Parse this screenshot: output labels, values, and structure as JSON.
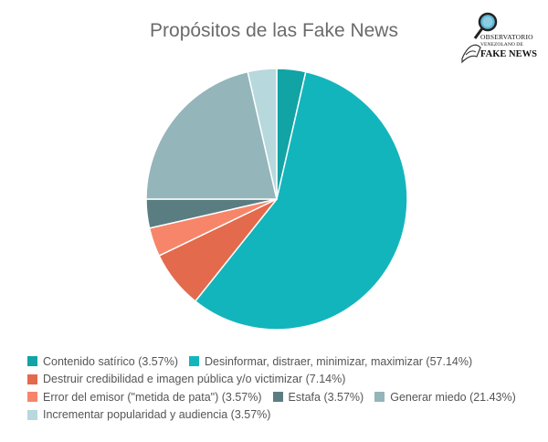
{
  "chart_data": {
    "type": "pie",
    "title": "Propósitos de las Fake News",
    "slices": [
      {
        "label": "Contenido satírico (3.57%)",
        "value": 3.57,
        "color": "#12A3A5"
      },
      {
        "label": "Desinformar, distraer, minimizar, maximizar (57.14%)",
        "value": 57.14,
        "color": "#13B5BC"
      },
      {
        "label": "Destruir credibilidad e imagen pública y/o victimizar (7.14%)",
        "value": 7.14,
        "color": "#E36A4C"
      },
      {
        "label": "Error del emisor (\"metida de pata\") (3.57%)",
        "value": 3.57,
        "color": "#F7856A"
      },
      {
        "label": "Estafa (3.57%)",
        "value": 3.57,
        "color": "#5A7D82"
      },
      {
        "label": "Generar miedo (21.43%)",
        "value": 21.43,
        "color": "#94B5B9"
      },
      {
        "label": "Incrementar popularidad y audiencia (3.57%)",
        "value": 3.57,
        "color": "#B7D8DC"
      }
    ],
    "legend_position": "bottom"
  },
  "logo": {
    "line1": "OBSERVATORIO",
    "line2": "VENEZOLANO DE",
    "line3": "FAKE NEWS",
    "icon": "magnifier-icon"
  },
  "legend_rows": [
    [
      0,
      1
    ],
    [
      2
    ],
    [
      3,
      4,
      5
    ],
    [
      6
    ]
  ]
}
